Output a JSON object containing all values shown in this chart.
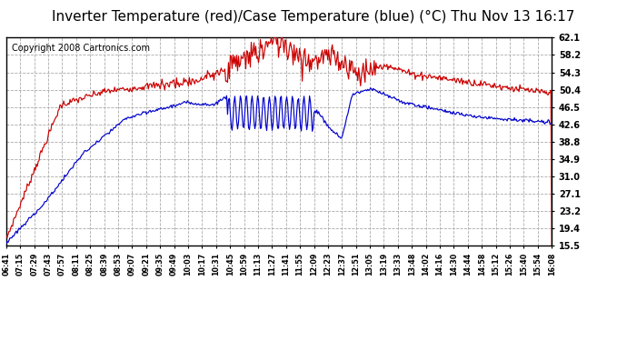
{
  "title": "Inverter Temperature (red)/Case Temperature (blue) (°C) Thu Nov 13 16:17",
  "copyright": "Copyright 2008 Cartronics.com",
  "bg_color": "#ffffff",
  "plot_bg_color": "#ffffff",
  "grid_color": "#aaaaaa",
  "line_red_color": "#cc0000",
  "line_blue_color": "#0000cc",
  "yticks": [
    15.5,
    19.4,
    23.2,
    27.1,
    31.0,
    34.9,
    38.8,
    42.6,
    46.5,
    50.4,
    54.3,
    58.2,
    62.1
  ],
  "ylim": [
    15.5,
    62.1
  ],
  "xtick_labels": [
    "06:41",
    "07:15",
    "07:29",
    "07:43",
    "07:57",
    "08:11",
    "08:25",
    "08:39",
    "08:53",
    "09:07",
    "09:21",
    "09:35",
    "09:49",
    "10:03",
    "10:17",
    "10:31",
    "10:45",
    "10:59",
    "11:13",
    "11:27",
    "11:41",
    "11:55",
    "12:09",
    "12:23",
    "12:37",
    "12:51",
    "13:05",
    "13:19",
    "13:33",
    "13:48",
    "14:02",
    "14:16",
    "14:30",
    "14:44",
    "14:58",
    "15:12",
    "15:26",
    "15:40",
    "15:54",
    "16:08"
  ],
  "title_fontsize": 11,
  "copyright_fontsize": 7
}
